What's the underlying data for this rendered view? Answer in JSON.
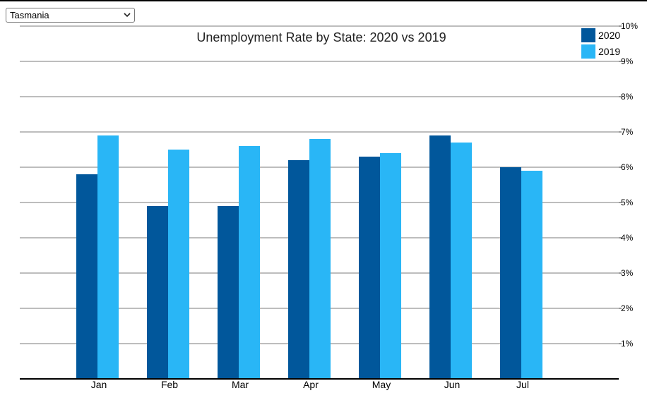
{
  "state_selector": {
    "selected": "Tasmania"
  },
  "chart_data": {
    "type": "bar",
    "title": "Unemployment Rate by State: 2020 vs 2019",
    "categories": [
      "Jan",
      "Feb",
      "Mar",
      "Apr",
      "May",
      "Jun",
      "Jul"
    ],
    "series": [
      {
        "name": "2020",
        "color": "#01579b",
        "values": [
          5.8,
          4.9,
          4.9,
          6.2,
          6.3,
          6.9,
          6.0
        ]
      },
      {
        "name": "2019",
        "color": "#29b6f6",
        "values": [
          6.9,
          6.5,
          6.6,
          6.8,
          6.4,
          6.7,
          5.9
        ]
      }
    ],
    "y_ticks": [
      "1%",
      "2%",
      "3%",
      "4%",
      "5%",
      "6%",
      "7%",
      "8%",
      "9%",
      "10%"
    ],
    "ylim": [
      0,
      10
    ],
    "y_axis_side": "right",
    "grid": true,
    "legend_position": "top-right"
  }
}
